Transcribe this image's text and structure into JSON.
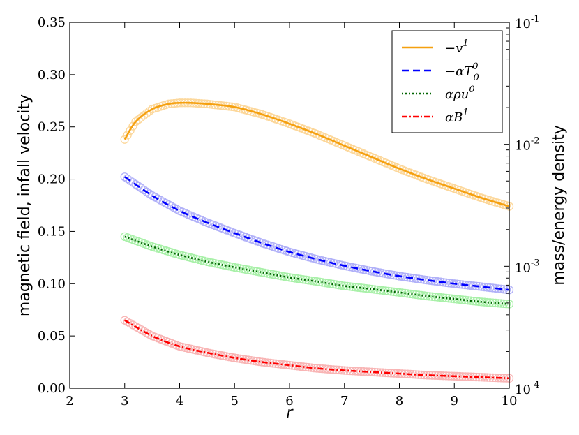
{
  "chart_data": {
    "type": "line",
    "title": "",
    "xlabel": "r",
    "ylabel_left": "magnetic field, infall velocity",
    "ylabel_right": "mass/energy density",
    "xlim": [
      2,
      10
    ],
    "ylim_left": [
      0.0,
      0.35
    ],
    "ylim_right_log10": [
      -4,
      -1
    ],
    "x_ticks": [
      "2",
      "3",
      "4",
      "5",
      "6",
      "7",
      "8",
      "9",
      "10"
    ],
    "y_left_ticks": [
      "0.00",
      "0.05",
      "0.10",
      "0.15",
      "0.20",
      "0.25",
      "0.30",
      "0.35"
    ],
    "y_right_ticks": [
      {
        "base": "10",
        "exp": "-4"
      },
      {
        "base": "10",
        "exp": "-3"
      },
      {
        "base": "10",
        "exp": "-2"
      },
      {
        "base": "10",
        "exp": "-1"
      }
    ],
    "legend_position": "top-right",
    "series": [
      {
        "name": "-v^1",
        "legend_main": "−v",
        "legend_sup": "1",
        "legend_sub": "",
        "axis": "left",
        "color": "#f5a00f",
        "marker_color": "#fcd79a",
        "dash": "",
        "x": [
          3.0,
          3.2,
          3.5,
          3.8,
          4.0,
          4.2,
          4.5,
          5.0,
          5.5,
          6.0,
          6.5,
          7.0,
          7.5,
          8.0,
          8.5,
          9.0,
          9.5,
          10.0
        ],
        "values": [
          0.238,
          0.255,
          0.267,
          0.272,
          0.273,
          0.273,
          0.272,
          0.269,
          0.262,
          0.253,
          0.243,
          0.232,
          0.221,
          0.21,
          0.2,
          0.191,
          0.182,
          0.174
        ]
      },
      {
        "name": "-alpha T^0_0",
        "legend_main": "−αT",
        "legend_sup": "0",
        "legend_sub": "0",
        "axis": "right",
        "color": "#0000ff",
        "marker_color": "#b0b0f8",
        "dash": "10,6",
        "x": [
          3.0,
          3.5,
          4.0,
          4.5,
          5.0,
          5.5,
          6.0,
          6.5,
          7.0,
          7.5,
          8.0,
          8.5,
          9.0,
          9.5,
          10.0
        ],
        "values": [
          0.00541,
          0.0038,
          0.00285,
          0.00228,
          0.00187,
          0.00155,
          0.00131,
          0.00114,
          0.00101,
          0.00091,
          0.00083,
          0.00077,
          0.00072,
          0.00068,
          0.00064
        ]
      },
      {
        "name": "alpha rho u^0",
        "legend_main": "αρu",
        "legend_sup": "0",
        "legend_sub": "",
        "axis": "right",
        "color": "#006400",
        "marker_color": "#a8f0a8",
        "dash": "2,3",
        "x": [
          3.0,
          3.5,
          4.0,
          4.5,
          5.0,
          5.5,
          6.0,
          6.5,
          7.0,
          7.5,
          8.0,
          8.5,
          9.0,
          9.5,
          10.0
        ],
        "values": [
          0.00175,
          0.00145,
          0.00124,
          0.00109,
          0.00098,
          0.00089,
          0.00081,
          0.00075,
          0.00069,
          0.00065,
          0.00061,
          0.00057,
          0.00054,
          0.00051,
          0.00049
        ]
      },
      {
        "name": "alpha B^1",
        "legend_main": "αB",
        "legend_sup": "1",
        "legend_sub": "",
        "axis": "left",
        "color": "#ff0000",
        "marker_color": "#f8b4b4",
        "dash": "8,3,2,3",
        "x": [
          3.0,
          3.5,
          4.0,
          4.5,
          5.0,
          5.5,
          6.0,
          6.5,
          7.0,
          7.5,
          8.0,
          8.5,
          9.0,
          9.5,
          10.0
        ],
        "values": [
          0.065,
          0.05,
          0.04,
          0.034,
          0.029,
          0.025,
          0.022,
          0.019,
          0.017,
          0.0155,
          0.014,
          0.0125,
          0.0115,
          0.0105,
          0.0095
        ]
      }
    ]
  }
}
